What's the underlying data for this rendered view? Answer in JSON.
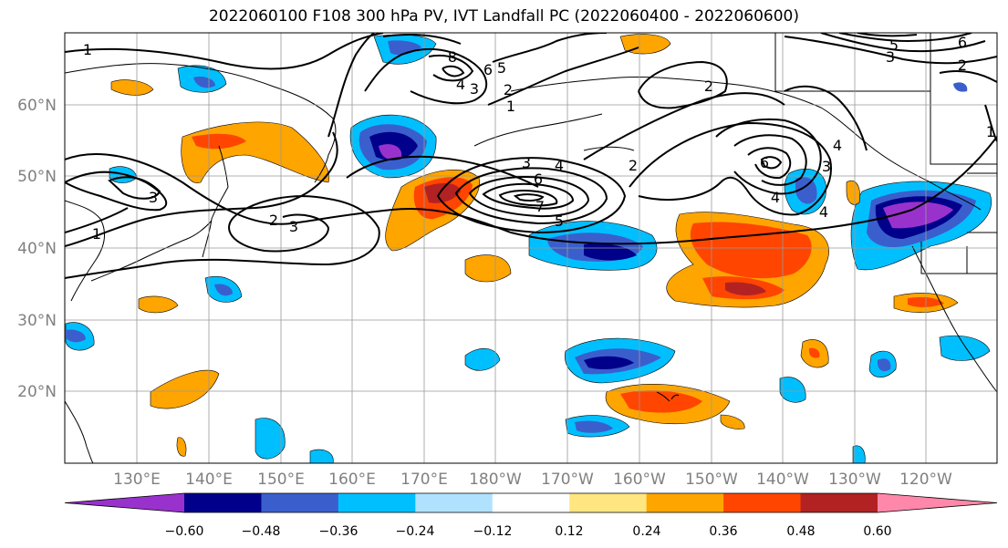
{
  "title": "2022060100 F108 300 hPa PV, IVT Landfall PC (2022060400 - 2022060600)",
  "lat_labels": [
    "60°N",
    "50°N",
    "40°N",
    "30°N",
    "20°N"
  ],
  "lon_labels": [
    "130°E",
    "140°E",
    "150°E",
    "160°E",
    "170°E",
    "180°W",
    "170°W",
    "160°W",
    "150°W",
    "140°W",
    "130°W",
    "120°W"
  ],
  "colorbar": {
    "ticks": [
      "−0.60",
      "−0.48",
      "−0.36",
      "−0.24",
      "−0.12",
      "0.12",
      "0.24",
      "0.36",
      "0.48",
      "0.60"
    ],
    "colors": [
      "#9932cc",
      "#00008b",
      "#3a5fcd",
      "#00bfff",
      "#b0e2ff",
      "#ffffff",
      "#ffe680",
      "#ffa500",
      "#ff4500",
      "#b22222",
      "#ff88aa"
    ]
  },
  "contour_labels": [
    "1",
    "8",
    "6",
    "5",
    "4",
    "3",
    "2",
    "1",
    "2",
    "3",
    "6",
    "4",
    "7",
    "5",
    "3",
    "2",
    "1",
    "3",
    "6",
    "4",
    "4",
    "3",
    "4",
    "2",
    "1",
    "5",
    "6",
    "3",
    "2"
  ]
}
